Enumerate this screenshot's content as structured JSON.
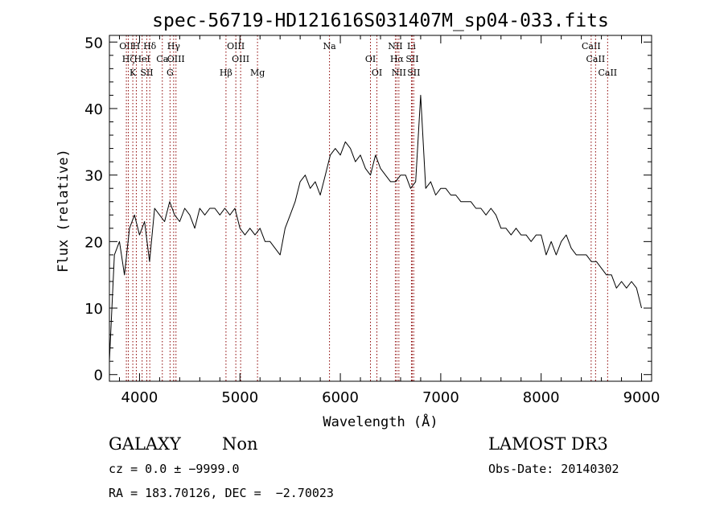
{
  "chart_data": {
    "type": "line",
    "title": "spec-56719-HD121616S031407M_sp04-033.fits",
    "xlabel": "Wavelength (Å)",
    "ylabel": "Flux (relative)",
    "xlim": [
      3700,
      9100
    ],
    "ylim": [
      -1,
      51
    ],
    "xticks": [
      4000,
      5000,
      6000,
      7000,
      8000,
      9000
    ],
    "yticks": [
      0,
      10,
      20,
      30,
      40,
      50
    ],
    "grid": false,
    "line_color": "#000000",
    "marker_color": "#8b0000",
    "series": [
      {
        "x": [
          3700,
          3750,
          3800,
          3850,
          3900,
          3950,
          4000,
          4050,
          4100,
          4150,
          4200,
          4250,
          4300,
          4350,
          4400,
          4450,
          4500,
          4550,
          4600,
          4650,
          4700,
          4750,
          4800,
          4850,
          4900,
          4950,
          5000,
          5050,
          5100,
          5150,
          5200,
          5250,
          5300,
          5350,
          5400,
          5450,
          5500,
          5550,
          5600,
          5650,
          5700,
          5750,
          5800,
          5850,
          5900,
          5950,
          6000,
          6050,
          6100,
          6150,
          6200,
          6250,
          6300,
          6350,
          6400,
          6450,
          6500,
          6550,
          6600,
          6650,
          6700,
          6750,
          6800,
          6850,
          6900,
          6950,
          7000,
          7050,
          7100,
          7150,
          7200,
          7250,
          7300,
          7350,
          7400,
          7450,
          7500,
          7550,
          7600,
          7650,
          7700,
          7750,
          7800,
          7850,
          7900,
          7950,
          8000,
          8050,
          8100,
          8150,
          8200,
          8250,
          8300,
          8350,
          8400,
          8450,
          8500,
          8550,
          8600,
          8650,
          8700,
          8750,
          8800,
          8850,
          8900,
          8950,
          9000
        ],
        "y": [
          2,
          18,
          20,
          15,
          22,
          24,
          21,
          23,
          17,
          25,
          24,
          23,
          26,
          24,
          23,
          25,
          24,
          22,
          25,
          24,
          25,
          25,
          24,
          25,
          24,
          25,
          22,
          21,
          22,
          21,
          22,
          20,
          20,
          19,
          18,
          22,
          24,
          26,
          29,
          30,
          28,
          29,
          27,
          30,
          33,
          34,
          33,
          35,
          34,
          32,
          33,
          31,
          30,
          33,
          31,
          30,
          29,
          29,
          30,
          30,
          28,
          29,
          42,
          28,
          29,
          27,
          28,
          28,
          27,
          27,
          26,
          26,
          26,
          25,
          25,
          24,
          25,
          24,
          22,
          22,
          21,
          22,
          21,
          21,
          20,
          21,
          21,
          18,
          20,
          18,
          20,
          21,
          19,
          18,
          18,
          18,
          17,
          17,
          16,
          15,
          15,
          13,
          14,
          13,
          14,
          13,
          10
        ]
      }
    ],
    "lines": [
      {
        "x": 3869,
        "label": "OII"
      },
      {
        "x": 3889,
        "label": "Hζ"
      },
      {
        "x": 3933,
        "label": "K"
      },
      {
        "x": 3968,
        "label": "H"
      },
      {
        "x": 4026,
        "label": "HeI"
      },
      {
        "x": 4072,
        "label": "SII"
      },
      {
        "x": 4102,
        "label": "Hδ"
      },
      {
        "x": 4227,
        "label": "Ca"
      },
      {
        "x": 4304,
        "label": "G"
      },
      {
        "x": 4340,
        "label": "Hγ"
      },
      {
        "x": 4363,
        "label": "OIII"
      },
      {
        "x": 4861,
        "label": "Hβ"
      },
      {
        "x": 4959,
        "label": "OIII"
      },
      {
        "x": 5007,
        "label": "OIII"
      },
      {
        "x": 5175,
        "label": "Mg"
      },
      {
        "x": 5892,
        "label": "Na"
      },
      {
        "x": 6300,
        "label": "OI"
      },
      {
        "x": 6364,
        "label": "OI"
      },
      {
        "x": 6548,
        "label": "NII"
      },
      {
        "x": 6563,
        "label": "Hα"
      },
      {
        "x": 6583,
        "label": "NII"
      },
      {
        "x": 6708,
        "label": "Li"
      },
      {
        "x": 6716,
        "label": "SII"
      },
      {
        "x": 6731,
        "label": "SII"
      },
      {
        "x": 8498,
        "label": "CaII"
      },
      {
        "x": 8542,
        "label": "CaII"
      },
      {
        "x": 8662,
        "label": "CaII"
      }
    ]
  },
  "info": {
    "class": "GALAXY",
    "subclass": "Non",
    "survey": "LAMOST DR3",
    "cz": "cz = 0.0 ± −9999.0",
    "obs_date": "Obs-Date: 20140302",
    "radec": "RA = 183.70126, DEC =  −2.70023"
  }
}
